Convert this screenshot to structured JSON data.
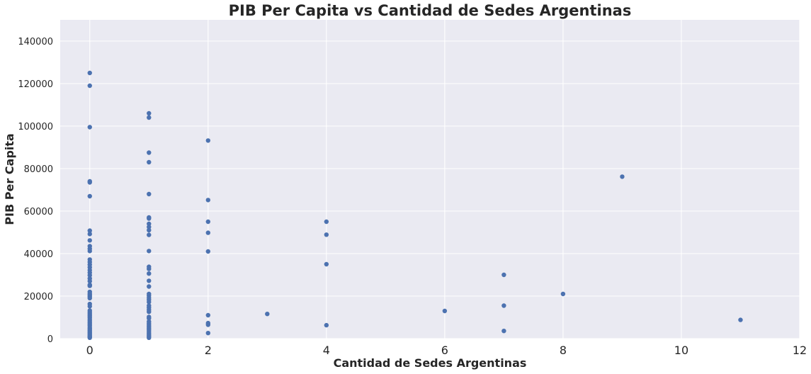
{
  "chart_data": {
    "type": "scatter",
    "title": "PIB Per Capita vs Cantidad de Sedes Argentinas",
    "xlabel": "Cantidad de Sedes Argentinas",
    "ylabel": "PIB Per Capita",
    "xlim": [
      -0.5,
      12
    ],
    "ylim": [
      0,
      150000
    ],
    "x_ticks": [
      0,
      2,
      4,
      6,
      8,
      10,
      12
    ],
    "y_ticks": [
      0,
      20000,
      40000,
      60000,
      80000,
      100000,
      120000,
      140000
    ],
    "grid": true,
    "background_color": "#eaeaf2",
    "grid_color": "#ffffff",
    "marker_color": "#4c72b0",
    "points": [
      {
        "x": 0,
        "y": 125000
      },
      {
        "x": 0,
        "y": 119000
      },
      {
        "x": 0,
        "y": 99500
      },
      {
        "x": 0,
        "y": 74000
      },
      {
        "x": 0,
        "y": 73500
      },
      {
        "x": 0,
        "y": 67000
      },
      {
        "x": 0,
        "y": 50800
      },
      {
        "x": 0,
        "y": 49200
      },
      {
        "x": 0,
        "y": 46200
      },
      {
        "x": 0,
        "y": 43500
      },
      {
        "x": 0,
        "y": 42300
      },
      {
        "x": 0,
        "y": 41200
      },
      {
        "x": 0,
        "y": 37200
      },
      {
        "x": 0,
        "y": 36000
      },
      {
        "x": 0,
        "y": 34800
      },
      {
        "x": 0,
        "y": 33500
      },
      {
        "x": 0,
        "y": 32200
      },
      {
        "x": 0,
        "y": 31000
      },
      {
        "x": 0,
        "y": 29800
      },
      {
        "x": 0,
        "y": 28300
      },
      {
        "x": 0,
        "y": 27000
      },
      {
        "x": 0,
        "y": 25300
      },
      {
        "x": 0,
        "y": 24800
      },
      {
        "x": 0,
        "y": 22000
      },
      {
        "x": 0,
        "y": 21200
      },
      {
        "x": 0,
        "y": 20500
      },
      {
        "x": 0,
        "y": 19800
      },
      {
        "x": 0,
        "y": 19000
      },
      {
        "x": 0,
        "y": 16300
      },
      {
        "x": 0,
        "y": 15200
      },
      {
        "x": 0,
        "y": 13200
      },
      {
        "x": 0,
        "y": 12400
      },
      {
        "x": 0,
        "y": 11600
      },
      {
        "x": 0,
        "y": 10800
      },
      {
        "x": 0,
        "y": 10000
      },
      {
        "x": 0,
        "y": 9200
      },
      {
        "x": 0,
        "y": 8400
      },
      {
        "x": 0,
        "y": 7600
      },
      {
        "x": 0,
        "y": 6800
      },
      {
        "x": 0,
        "y": 6000
      },
      {
        "x": 0,
        "y": 5200
      },
      {
        "x": 0,
        "y": 4500
      },
      {
        "x": 0,
        "y": 3800
      },
      {
        "x": 0,
        "y": 3100
      },
      {
        "x": 0,
        "y": 2500
      },
      {
        "x": 0,
        "y": 1900
      },
      {
        "x": 0,
        "y": 1300
      },
      {
        "x": 0,
        "y": 800
      },
      {
        "x": 0,
        "y": 400
      },
      {
        "x": 1,
        "y": 106000
      },
      {
        "x": 1,
        "y": 104000
      },
      {
        "x": 1,
        "y": 87500
      },
      {
        "x": 1,
        "y": 83000
      },
      {
        "x": 1,
        "y": 68000
      },
      {
        "x": 1,
        "y": 57000
      },
      {
        "x": 1,
        "y": 56500
      },
      {
        "x": 1,
        "y": 54000
      },
      {
        "x": 1,
        "y": 52500
      },
      {
        "x": 1,
        "y": 51000
      },
      {
        "x": 1,
        "y": 48800
      },
      {
        "x": 1,
        "y": 41200
      },
      {
        "x": 1,
        "y": 33800
      },
      {
        "x": 1,
        "y": 32800
      },
      {
        "x": 1,
        "y": 30600
      },
      {
        "x": 1,
        "y": 27200
      },
      {
        "x": 1,
        "y": 24500
      },
      {
        "x": 1,
        "y": 21000
      },
      {
        "x": 1,
        "y": 20200
      },
      {
        "x": 1,
        "y": 19200
      },
      {
        "x": 1,
        "y": 18300
      },
      {
        "x": 1,
        "y": 17200
      },
      {
        "x": 1,
        "y": 15500
      },
      {
        "x": 1,
        "y": 14600
      },
      {
        "x": 1,
        "y": 13500
      },
      {
        "x": 1,
        "y": 12600
      },
      {
        "x": 1,
        "y": 10200
      },
      {
        "x": 1,
        "y": 9500
      },
      {
        "x": 1,
        "y": 8000
      },
      {
        "x": 1,
        "y": 7200
      },
      {
        "x": 1,
        "y": 6400
      },
      {
        "x": 1,
        "y": 5600
      },
      {
        "x": 1,
        "y": 4800
      },
      {
        "x": 1,
        "y": 4000
      },
      {
        "x": 1,
        "y": 3200
      },
      {
        "x": 1,
        "y": 2400
      },
      {
        "x": 1,
        "y": 1700
      },
      {
        "x": 1,
        "y": 1000
      },
      {
        "x": 1,
        "y": 400
      },
      {
        "x": 2,
        "y": 93200
      },
      {
        "x": 2,
        "y": 65200
      },
      {
        "x": 2,
        "y": 55000
      },
      {
        "x": 2,
        "y": 49800
      },
      {
        "x": 2,
        "y": 41000
      },
      {
        "x": 2,
        "y": 11000
      },
      {
        "x": 2,
        "y": 7300
      },
      {
        "x": 2,
        "y": 6500
      },
      {
        "x": 2,
        "y": 2600
      },
      {
        "x": 3,
        "y": 11600
      },
      {
        "x": 4,
        "y": 55000
      },
      {
        "x": 4,
        "y": 48900
      },
      {
        "x": 4,
        "y": 35000
      },
      {
        "x": 4,
        "y": 6300
      },
      {
        "x": 6,
        "y": 13000
      },
      {
        "x": 7,
        "y": 30000
      },
      {
        "x": 7,
        "y": 15500
      },
      {
        "x": 7,
        "y": 3600
      },
      {
        "x": 8,
        "y": 21000
      },
      {
        "x": 9,
        "y": 76200
      },
      {
        "x": 11,
        "y": 8800
      }
    ]
  }
}
